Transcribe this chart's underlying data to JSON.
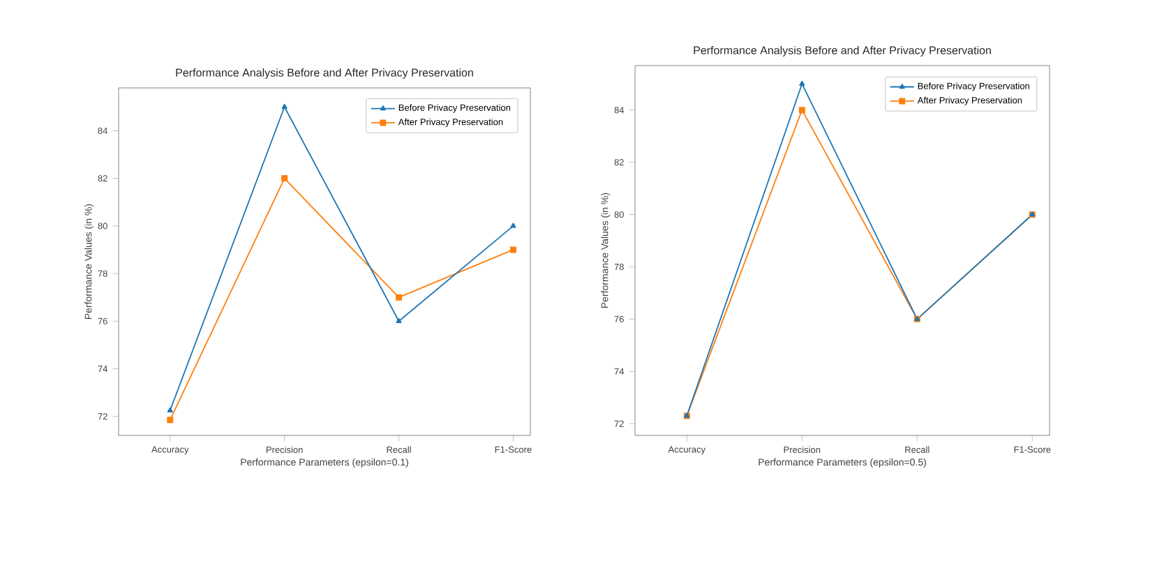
{
  "chart_data": [
    {
      "type": "line",
      "title": "Performance Analysis Before and After Privacy Preservation",
      "xlabel": "Performance Parameters  (epsilon=0.1)",
      "ylabel": "Performance Values (in %)",
      "categories": [
        "Accuracy",
        "Precision",
        "Recall",
        "F1-Score"
      ],
      "ylim": [
        71.2,
        85.8
      ],
      "yticks": [
        72,
        74,
        76,
        78,
        80,
        82,
        84
      ],
      "legend": "top right",
      "series": [
        {
          "name": "Before Privacy Preservation",
          "color": "#1f77b4",
          "marker": "triangle",
          "values": [
            72.25,
            85,
            76,
            80
          ]
        },
        {
          "name": "After Privacy Preservation",
          "color": "#ff7f0e",
          "marker": "square",
          "values": [
            71.85,
            82,
            77,
            79
          ]
        }
      ]
    },
    {
      "type": "line",
      "title": "Performance Analysis Before and After Privacy Preservation",
      "xlabel": "Performance Parameters  (epsilon=0.5)",
      "ylabel": "Performance Values (in %)",
      "categories": [
        "Accuracy",
        "Precision",
        "Recall",
        "F1-Score"
      ],
      "ylim": [
        71.55,
        85.7
      ],
      "yticks": [
        72,
        74,
        76,
        78,
        80,
        82,
        84
      ],
      "legend": "top right",
      "series": [
        {
          "name": "Before Privacy Preservation",
          "color": "#1f77b4",
          "marker": "triangle",
          "values": [
            72.3,
            85,
            76,
            80
          ]
        },
        {
          "name": "After Privacy Preservation",
          "color": "#ff7f0e",
          "marker": "square",
          "values": [
            72.3,
            84,
            76,
            80
          ]
        }
      ]
    }
  ]
}
